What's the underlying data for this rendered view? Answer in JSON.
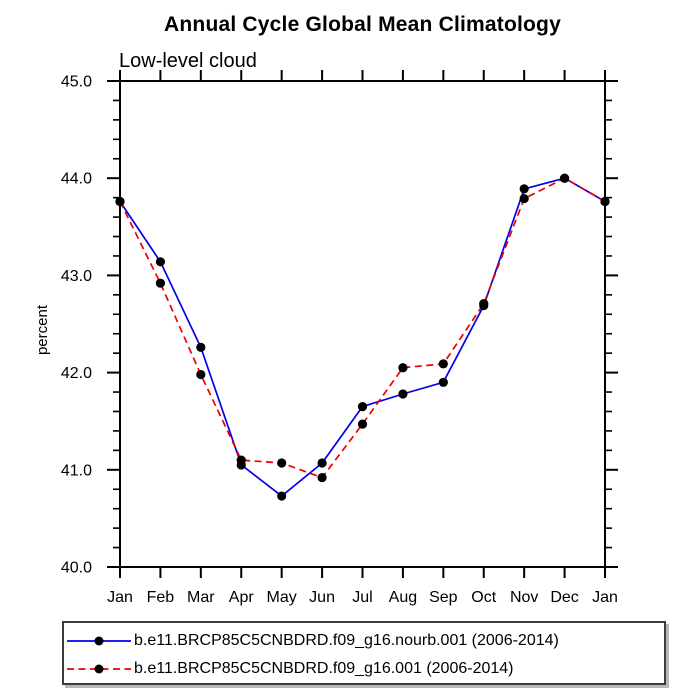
{
  "title": "Annual Cycle Global Mean Climatology",
  "subtitle": "Low-level cloud",
  "chart_data": {
    "type": "line",
    "categories": [
      "Jan",
      "Feb",
      "Mar",
      "Apr",
      "May",
      "Jun",
      "Jul",
      "Aug",
      "Sep",
      "Oct",
      "Nov",
      "Dec",
      "Jan"
    ],
    "series": [
      {
        "name": "b.e11.BRCP85C5CNBDRD.f09_g16.nourb.001 (2006-2014)",
        "color": "#0000ee",
        "style": "solid",
        "values": [
          43.76,
          43.14,
          42.26,
          41.05,
          40.73,
          41.07,
          41.65,
          41.78,
          41.9,
          42.69,
          43.89,
          44.0,
          43.76
        ]
      },
      {
        "name": "b.e11.BRCP85C5CNBDRD.f09_g16.001 (2006-2014)",
        "color": "#ee0000",
        "style": "dashed",
        "values": [
          43.76,
          42.92,
          41.98,
          41.1,
          41.07,
          40.92,
          41.47,
          42.05,
          42.09,
          42.71,
          43.79,
          44.0,
          43.76
        ]
      }
    ],
    "xlabel": "",
    "ylabel": "percent",
    "ylim": [
      40.0,
      45.0
    ],
    "ytick_interval": 1.0,
    "yminor_interval": 0.2,
    "ytick_labels": [
      "40.0",
      "41.0",
      "42.0",
      "43.0",
      "44.0",
      "45.0"
    ],
    "marker": {
      "shape": "circle",
      "color": "#000000"
    },
    "grid": "off",
    "legend_position": "bottom-left-box",
    "axis_color": "#000000"
  }
}
